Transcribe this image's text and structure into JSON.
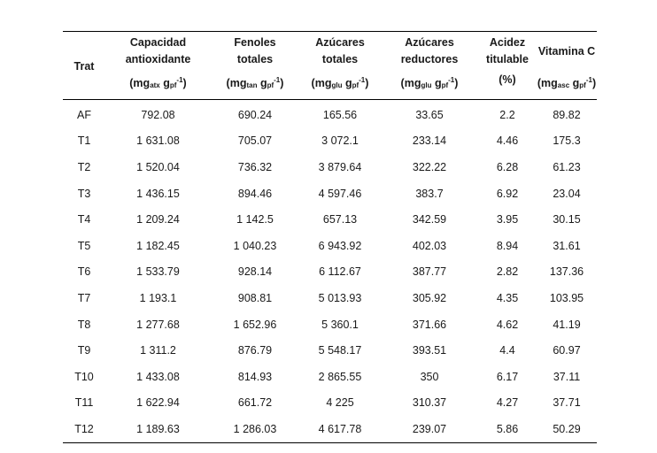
{
  "headers": {
    "trat": "Trat",
    "capacidad": [
      "Capacidad",
      "antioxidante"
    ],
    "fenoles": [
      "Fenoles",
      "totales"
    ],
    "azucares_totales": [
      "Azúcares",
      "totales"
    ],
    "azucares_reductores": [
      "Azúcares",
      "reductores"
    ],
    "acidez": [
      "Acidez",
      "titulable"
    ],
    "vitamina": "Vitamina C"
  },
  "units": {
    "capacidad": {
      "pre": "(mg",
      "sub1": "atx",
      "mid": " g",
      "sub2": "pf",
      "sup": "-1",
      "post": ")"
    },
    "fenoles": {
      "pre": "(mg",
      "sub1": "tan",
      "mid": " g",
      "sub2": "pf",
      "sup": "-1",
      "post": ")"
    },
    "azucares_totales": {
      "pre": "(mg",
      "sub1": "glu",
      "mid": " g",
      "sub2": "pf",
      "sup": "-1",
      "post": ")"
    },
    "azucares_reductores": {
      "pre": "(mg",
      "sub1": "glu",
      "mid": " g",
      "sub2": "pf",
      "sup": "-1",
      "post": ")"
    },
    "acidez": "(%)",
    "vitamina": {
      "pre": "(mg",
      "sub1": "asc",
      "mid": " g",
      "sub2": "pf",
      "sup": "-1",
      "post": ")"
    }
  },
  "rows": [
    [
      "AF",
      "792.08",
      "690.24",
      "165.56",
      "33.65",
      "2.2",
      "89.82"
    ],
    [
      "T1",
      "1 631.08",
      "705.07",
      "3 072.1",
      "233.14",
      "4.46",
      "175.3"
    ],
    [
      "T2",
      "1 520.04",
      "736.32",
      "3 879.64",
      "322.22",
      "6.28",
      "61.23"
    ],
    [
      "T3",
      "1 436.15",
      "894.46",
      "4 597.46",
      "383.7",
      "6.92",
      "23.04"
    ],
    [
      "T4",
      "1 209.24",
      "1 142.5",
      "657.13",
      "342.59",
      "3.95",
      "30.15"
    ],
    [
      "T5",
      "1 182.45",
      "1 040.23",
      "6 943.92",
      "402.03",
      "8.94",
      "31.61"
    ],
    [
      "T6",
      "1 533.79",
      "928.14",
      "6 112.67",
      "387.77",
      "2.82",
      "137.36"
    ],
    [
      "T7",
      "1 193.1",
      "908.81",
      "5 013.93",
      "305.92",
      "4.35",
      "103.95"
    ],
    [
      "T8",
      "1 277.68",
      "1 652.96",
      "5 360.1",
      "371.66",
      "4.62",
      "41.19"
    ],
    [
      "T9",
      "1 311.2",
      "876.79",
      "5 548.17",
      "393.51",
      "4.4",
      "60.97"
    ],
    [
      "T10",
      "1 433.08",
      "814.93",
      "2 865.55",
      "350",
      "6.17",
      "37.11"
    ],
    [
      "T11",
      "1 622.94",
      "661.72",
      "4 225",
      "310.37",
      "4.27",
      "37.71"
    ],
    [
      "T12",
      "1 189.63",
      "1 286.03",
      "4 617.78",
      "239.07",
      "5.86",
      "50.29"
    ]
  ]
}
